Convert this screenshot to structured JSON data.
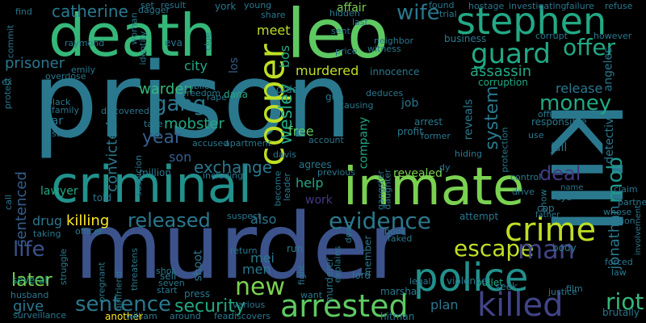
{
  "background": "#000000",
  "palette": [
    "#440154",
    "#3b528b",
    "#21908d",
    "#5dc863",
    "#fde725"
  ],
  "words": [
    {
      "text": "prison",
      "color": "#2a788e"
    },
    {
      "text": "death",
      "color": "#35b779"
    },
    {
      "text": "leo",
      "color": "#5ec962"
    },
    {
      "text": "murder",
      "color": "#3b528b"
    },
    {
      "text": "kill",
      "color": "#2a788e"
    },
    {
      "text": "criminal",
      "color": "#21918c"
    },
    {
      "text": "inmate",
      "color": "#7ad151"
    },
    {
      "text": "stephen",
      "color": "#22a884"
    },
    {
      "text": "police",
      "color": "#21918c"
    },
    {
      "text": "cooper",
      "color": "#bddf26"
    },
    {
      "text": "arrested",
      "color": "#5ec962"
    },
    {
      "text": "killed",
      "color": "#414487"
    },
    {
      "text": "crime",
      "color": "#bddf26"
    },
    {
      "text": "guard",
      "color": "#22a884"
    },
    {
      "text": "sentence",
      "color": "#2a788e"
    },
    {
      "text": "released",
      "color": "#2a788e"
    },
    {
      "text": "evidence",
      "color": "#2a788e"
    },
    {
      "text": "money",
      "color": "#22a884"
    },
    {
      "text": "offer",
      "color": "#22a884"
    },
    {
      "text": "escape",
      "color": "#bddf26"
    },
    {
      "text": "security",
      "color": "#22a884"
    },
    {
      "text": "riot",
      "color": "#35b779"
    },
    {
      "text": "new",
      "color": "#7ad151"
    },
    {
      "text": "man",
      "color": "#414487"
    },
    {
      "text": "gang",
      "color": "#2a788e"
    },
    {
      "text": "year",
      "color": "#355f8d"
    },
    {
      "text": "life",
      "color": "#3b528b"
    },
    {
      "text": "deal",
      "color": "#443983"
    },
    {
      "text": "wife",
      "color": "#2a788e"
    },
    {
      "text": "mob",
      "color": "#1f988b"
    },
    {
      "text": "later",
      "color": "#7ad151"
    },
    {
      "text": "give",
      "color": "#2a788e"
    },
    {
      "text": "crime",
      "color": "#bddf26"
    },
    {
      "text": "convicted",
      "color": "#2a788e"
    },
    {
      "text": "sentenced",
      "color": "#355f8d"
    },
    {
      "text": "wesley",
      "color": "#22a884"
    },
    {
      "text": "exchange",
      "color": "#2a788e"
    },
    {
      "text": "mobster",
      "color": "#22a884"
    },
    {
      "text": "system",
      "color": "#2a788e"
    },
    {
      "text": "jonathan",
      "color": "#2a788e"
    },
    {
      "text": "warden",
      "color": "#35b779"
    },
    {
      "text": "murdered",
      "color": "#bddf26"
    },
    {
      "text": "catherine",
      "color": "#2a788e"
    },
    {
      "text": "prisoner",
      "color": "#2a788e"
    },
    {
      "text": "assassin",
      "color": "#22a884"
    },
    {
      "text": "release",
      "color": "#2a788e"
    },
    {
      "text": "killing",
      "color": "#fde725"
    },
    {
      "text": "meet",
      "color": "#bddf26"
    },
    {
      "text": "city",
      "color": "#22a884"
    },
    {
      "text": "son",
      "color": "#355f8d"
    },
    {
      "text": "also",
      "color": "#2a788e"
    },
    {
      "text": "help",
      "color": "#22a884"
    },
    {
      "text": "work",
      "color": "#443983"
    },
    {
      "text": "drug",
      "color": "#2a788e"
    },
    {
      "text": "lawyer",
      "color": "#22a884"
    },
    {
      "text": "free",
      "color": "#5ec962"
    },
    {
      "text": "bos",
      "color": "#22a884"
    },
    {
      "text": "company",
      "color": "#22a884"
    },
    {
      "text": "shoot",
      "color": "#2a788e"
    },
    {
      "text": "mei",
      "color": "#2a788e"
    },
    {
      "text": "men",
      "color": "#2a788e"
    },
    {
      "text": "plan",
      "color": "#2a788e"
    },
    {
      "text": "reveals",
      "color": "#2a788e"
    },
    {
      "text": "detective",
      "color": "#2a788e"
    },
    {
      "text": "angeles",
      "color": "#2a788e"
    },
    {
      "text": "los",
      "color": "#355f8d"
    },
    {
      "text": "business",
      "color": "#2a788e"
    },
    {
      "text": "innocence",
      "color": "#2a788e"
    },
    {
      "text": "corruption",
      "color": "#22a884"
    },
    {
      "text": "responsible",
      "color": "#2a788e"
    },
    {
      "text": "revealed",
      "color": "#7ad151"
    },
    {
      "text": "jail",
      "color": "#2a788e"
    },
    {
      "text": "car",
      "color": "#2a788e"
    },
    {
      "text": "job",
      "color": "#2a788e"
    },
    {
      "text": "affair",
      "color": "#7ad151"
    },
    {
      "text": "order",
      "color": "#2a788e"
    },
    {
      "text": "dana",
      "color": "#22a884"
    },
    {
      "text": "york",
      "color": "#2a788e"
    },
    {
      "text": "million",
      "color": "#2a788e"
    },
    {
      "text": "body",
      "color": "#2a788e"
    },
    {
      "text": "forced",
      "color": "#2a788e"
    },
    {
      "text": "member",
      "color": "#2a788e"
    },
    {
      "text": "murderer",
      "color": "#2a788e"
    },
    {
      "text": "bullet",
      "color": "#22a884"
    },
    {
      "text": "several",
      "color": "#22a884"
    },
    {
      "text": "husband",
      "color": "#2a788e"
    },
    {
      "text": "another",
      "color": "#fde725"
    },
    {
      "text": "hitman",
      "color": "#2a788e"
    },
    {
      "text": "brutally",
      "color": "#2a788e"
    },
    {
      "text": "lord",
      "color": "#2a788e"
    },
    {
      "text": "marshal",
      "color": "#2a788e"
    },
    {
      "text": "violence",
      "color": "#2a788e"
    },
    {
      "text": "seek",
      "color": "#2a788e"
    },
    {
      "text": "attempt",
      "color": "#2a788e"
    },
    {
      "text": "cop",
      "color": "#2a788e"
    },
    {
      "text": "eye",
      "color": "#2a788e"
    },
    {
      "text": "claim",
      "color": "#2a788e"
    },
    {
      "text": "gun",
      "color": "#2a788e"
    },
    {
      "text": "arrest",
      "color": "#2a788e"
    },
    {
      "text": "profit",
      "color": "#2a788e"
    },
    {
      "text": "former",
      "color": "#2a788e"
    },
    {
      "text": "agrees",
      "color": "#2a788e"
    },
    {
      "text": "press",
      "color": "#2a788e"
    },
    {
      "text": "eva",
      "color": "#2a788e"
    },
    {
      "text": "told",
      "color": "#2a788e"
    },
    {
      "text": "sell",
      "color": "#2a788e"
    },
    {
      "text": "shot",
      "color": "#2a788e"
    },
    {
      "text": "run",
      "color": "#2a788e"
    },
    {
      "text": "return",
      "color": "#2a788e"
    },
    {
      "text": "dead",
      "color": "#2a788e"
    },
    {
      "text": "william",
      "color": "#2a788e"
    },
    {
      "text": "around",
      "color": "#2a788e"
    },
    {
      "text": "discovers",
      "color": "#2a788e"
    },
    {
      "text": "want",
      "color": "#2a788e"
    },
    {
      "text": "fight",
      "color": "#2a788e"
    },
    {
      "text": "film",
      "color": "#2a788e"
    },
    {
      "text": "justice",
      "color": "#2a788e"
    },
    {
      "text": "law",
      "color": "#2a788e"
    },
    {
      "text": "gangster",
      "color": "#2a788e"
    },
    {
      "text": "legal",
      "color": "#2a788e"
    },
    {
      "text": "control",
      "color": "#2a788e"
    },
    {
      "text": "drive",
      "color": "#2a788e"
    },
    {
      "text": "hiding",
      "color": "#2a788e"
    },
    {
      "text": "name",
      "color": "#2a788e"
    },
    {
      "text": "father",
      "color": "#2a788e"
    },
    {
      "text": "whose",
      "color": "#2a788e"
    },
    {
      "text": "location",
      "color": "#2a788e"
    },
    {
      "text": "partner",
      "color": "#2a788e"
    },
    {
      "text": "involvement",
      "color": "#2a788e"
    },
    {
      "text": "investigating",
      "color": "#2a788e"
    },
    {
      "text": "failure",
      "color": "#2a788e"
    },
    {
      "text": "refuse",
      "color": "#2a788e"
    },
    {
      "text": "hostage",
      "color": "#2a788e"
    },
    {
      "text": "found",
      "color": "#2a788e"
    },
    {
      "text": "trial",
      "color": "#2a788e"
    },
    {
      "text": "hidden",
      "color": "#2a788e"
    },
    {
      "text": "last",
      "color": "#2a788e"
    },
    {
      "text": "sent",
      "color": "#2a788e"
    },
    {
      "text": "neighbor",
      "color": "#2a788e"
    },
    {
      "text": "witness",
      "color": "#2a788e"
    },
    {
      "text": "price",
      "color": "#2a788e"
    },
    {
      "text": "share",
      "color": "#2a788e"
    },
    {
      "text": "young",
      "color": "#2a788e"
    },
    {
      "text": "result",
      "color": "#2a788e"
    },
    {
      "text": "set",
      "color": "#2a788e"
    },
    {
      "text": "dagger",
      "color": "#2a788e"
    },
    {
      "text": "woman",
      "color": "#2a788e"
    },
    {
      "text": "identity",
      "color": "#2a788e"
    },
    {
      "text": "clue",
      "color": "#2a788e"
    },
    {
      "text": "find",
      "color": "#2a788e"
    },
    {
      "text": "raymond",
      "color": "#2a788e"
    },
    {
      "text": "emily",
      "color": "#2a788e"
    },
    {
      "text": "overdose",
      "color": "#2a788e"
    },
    {
      "text": "protect",
      "color": "#2a788e"
    },
    {
      "text": "family",
      "color": "#2a788e"
    },
    {
      "text": "black",
      "color": "#2a788e"
    },
    {
      "text": "story",
      "color": "#2a788e"
    },
    {
      "text": "public",
      "color": "#2a788e"
    },
    {
      "text": "freedom",
      "color": "#2a788e"
    },
    {
      "text": "rape",
      "color": "#2a788e"
    },
    {
      "text": "discovered",
      "color": "#2a788e"
    },
    {
      "text": "take",
      "color": "#2a788e"
    },
    {
      "text": "accused",
      "color": "#2a788e"
    },
    {
      "text": "apartment",
      "color": "#2a788e"
    },
    {
      "text": "suspicion",
      "color": "#2a788e"
    },
    {
      "text": "including",
      "color": "#2a788e"
    },
    {
      "text": "become",
      "color": "#2a788e"
    },
    {
      "text": "leader",
      "color": "#2a788e"
    },
    {
      "text": "suspect",
      "color": "#2a788e"
    },
    {
      "text": "threatens",
      "color": "#2a788e"
    },
    {
      "text": "start",
      "color": "#2a788e"
    },
    {
      "text": "seven",
      "color": "#2a788e"
    },
    {
      "text": "officer",
      "color": "#2a788e"
    },
    {
      "text": "taking",
      "color": "#2a788e"
    },
    {
      "text": "call",
      "color": "#2a788e"
    },
    {
      "text": "struggle",
      "color": "#2a788e"
    },
    {
      "text": "pregnant",
      "color": "#2a788e"
    },
    {
      "text": "girlfriend",
      "color": "#2a788e"
    },
    {
      "text": "surveillance",
      "color": "#2a788e"
    },
    {
      "text": "various",
      "color": "#2a788e"
    },
    {
      "text": "fear",
      "color": "#2a788e"
    },
    {
      "text": "explains",
      "color": "#2a788e"
    },
    {
      "text": "faked",
      "color": "#2a788e"
    },
    {
      "text": "book",
      "color": "#2a788e"
    },
    {
      "text": "daughter",
      "color": "#2a788e"
    },
    {
      "text": "protection",
      "color": "#2a788e"
    },
    {
      "text": "deduces",
      "color": "#2a788e"
    },
    {
      "text": "causing",
      "color": "#2a788e"
    },
    {
      "text": "office",
      "color": "#2a788e"
    },
    {
      "text": "use",
      "color": "#2a788e"
    },
    {
      "text": "corrupt",
      "color": "#2a788e"
    },
    {
      "text": "however",
      "color": "#2a788e"
    },
    {
      "text": "previous",
      "color": "#2a788e"
    },
    {
      "text": "account",
      "color": "#2a788e"
    },
    {
      "text": "dy",
      "color": "#2a788e"
    },
    {
      "text": "davis",
      "color": "#2a788e"
    },
    {
      "text": "show",
      "color": "#2a788e"
    },
    {
      "text": "ex",
      "color": "#2a788e"
    },
    {
      "text": "commit",
      "color": "#2a788e"
    }
  ]
}
